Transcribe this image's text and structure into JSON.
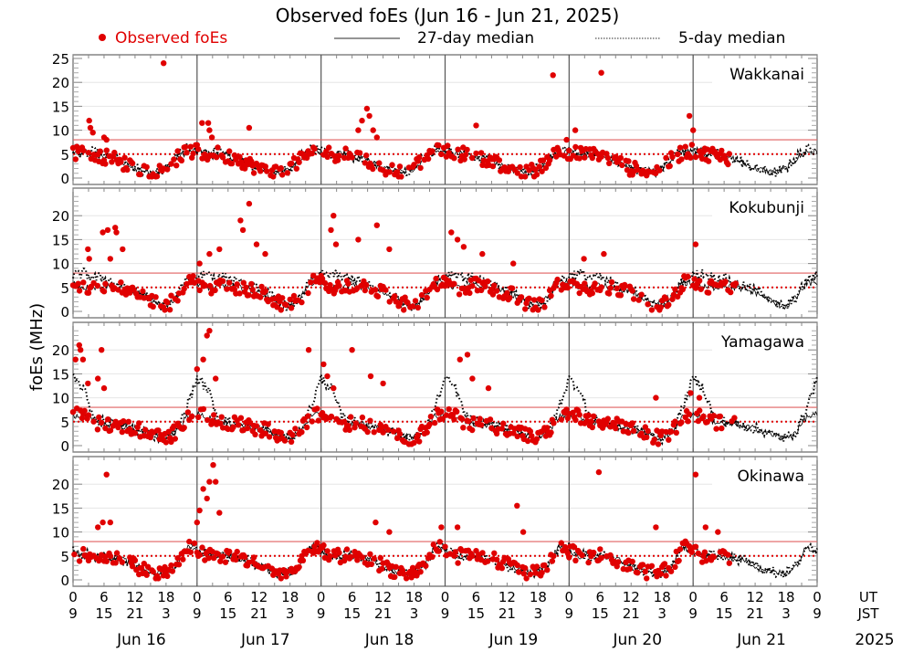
{
  "chart_data": {
    "type": "scatter",
    "title": "Observed foEs (Jun 16 - Jun 21, 2025)",
    "ylabel": "foEs (MHz)",
    "ylim": [
      0,
      25
    ],
    "yticks": [
      0,
      5,
      10,
      15,
      20,
      25
    ],
    "yticks_lower_panels": [
      0,
      5,
      10,
      15,
      20
    ],
    "grid": true,
    "legend": {
      "placement": "top",
      "entries": [
        {
          "label": "Observed foEs",
          "style": "red-dot",
          "color": "#e00000"
        },
        {
          "label": "27-day median",
          "style": "solid-line",
          "color": "#000000"
        },
        {
          "label": "5-day median",
          "style": "dotted-line",
          "color": "#000000"
        }
      ]
    },
    "reference_lines": [
      {
        "value": 8,
        "style": "solid",
        "color": "#e06060"
      },
      {
        "value": 5,
        "style": "dotted",
        "color": "#e00000"
      }
    ],
    "x_ut_ticks": [
      "0",
      "6",
      "12",
      "18",
      "0",
      "6",
      "12",
      "18",
      "0",
      "6",
      "12",
      "18",
      "0",
      "6",
      "12",
      "18",
      "0",
      "6",
      "12",
      "18",
      "0",
      "6",
      "12",
      "18",
      "0"
    ],
    "x_jst_ticks": [
      "9",
      "15",
      "21",
      "3",
      "9",
      "15",
      "21",
      "3",
      "9",
      "15",
      "21",
      "3",
      "9",
      "15",
      "21",
      "3",
      "9",
      "15",
      "21",
      "3",
      "9",
      "15",
      "21",
      "3",
      "9"
    ],
    "x_ut_label": "UT",
    "x_jst_label": "JST",
    "days": [
      "Jun 16",
      "Jun 17",
      "Jun 18",
      "Jun 19",
      "Jun 20",
      "Jun 21"
    ],
    "year": "2025",
    "panels": [
      {
        "station": "Wakkanai",
        "median27_daily": [
          5.5,
          5,
          5,
          4.5,
          4,
          3,
          2,
          1.5,
          1.2,
          2,
          4,
          5.5
        ],
        "median5_daily": [
          6,
          5,
          5.5,
          4.5,
          4,
          3,
          2,
          1.5,
          1,
          2,
          4.5,
          6
        ],
        "observed_until_day": 5.3,
        "peaks": [
          [
            0.13,
            12
          ],
          [
            0.14,
            10.5
          ],
          [
            0.16,
            9.5
          ],
          [
            0.25,
            8.5
          ],
          [
            0.27,
            8
          ],
          [
            0.73,
            24
          ],
          [
            1.04,
            11.5
          ],
          [
            1.09,
            11.5
          ],
          [
            1.1,
            10
          ],
          [
            1.12,
            8.5
          ],
          [
            1.42,
            10.5
          ],
          [
            2.3,
            10
          ],
          [
            2.33,
            12
          ],
          [
            2.37,
            14.5
          ],
          [
            2.39,
            13
          ],
          [
            2.42,
            10
          ],
          [
            2.45,
            8.5
          ],
          [
            3.25,
            11
          ],
          [
            3.87,
            21.5
          ],
          [
            3.98,
            8
          ],
          [
            4.05,
            10
          ],
          [
            4.26,
            22
          ],
          [
            4.97,
            13
          ],
          [
            5.0,
            10
          ]
        ]
      },
      {
        "station": "Kokubunji",
        "median27_daily": [
          6,
          5,
          5,
          5.5,
          5,
          4.5,
          4,
          3,
          1.5,
          1,
          3,
          6
        ],
        "median5_daily": [
          7.5,
          8,
          7,
          7,
          6,
          5,
          4.5,
          3.5,
          1.5,
          1,
          3,
          6.5
        ],
        "observed_until_day": 5.35,
        "peaks": [
          [
            0.12,
            13
          ],
          [
            0.13,
            11
          ],
          [
            0.28,
            17
          ],
          [
            0.34,
            17.5
          ],
          [
            0.35,
            16.5
          ],
          [
            0.4,
            13
          ],
          [
            0.3,
            11
          ],
          [
            0.24,
            16.5
          ],
          [
            1.02,
            10
          ],
          [
            1.1,
            12
          ],
          [
            1.18,
            13
          ],
          [
            1.35,
            19
          ],
          [
            1.37,
            17
          ],
          [
            1.42,
            22.5
          ],
          [
            1.48,
            14
          ],
          [
            1.55,
            12
          ],
          [
            2.08,
            17
          ],
          [
            2.1,
            20
          ],
          [
            2.12,
            14
          ],
          [
            2.3,
            15
          ],
          [
            2.45,
            18
          ],
          [
            2.55,
            13
          ],
          [
            3.05,
            16.5
          ],
          [
            3.1,
            15
          ],
          [
            3.15,
            13.5
          ],
          [
            3.3,
            12
          ],
          [
            3.55,
            10
          ],
          [
            4.12,
            11
          ],
          [
            4.28,
            12
          ],
          [
            5.02,
            14
          ]
        ]
      },
      {
        "station": "Yamagawa",
        "median27_daily": [
          6.5,
          6,
          5,
          4.5,
          4.5,
          4,
          3.5,
          3,
          2,
          1.5,
          3,
          6
        ],
        "median5_daily": [
          14,
          12,
          6,
          5,
          4.5,
          4,
          3.5,
          3,
          2,
          1.5,
          3,
          8
        ],
        "observed_until_day": 5.35,
        "peaks": [
          [
            0.02,
            18
          ],
          [
            0.05,
            21
          ],
          [
            0.06,
            20
          ],
          [
            0.08,
            18
          ],
          [
            0.12,
            13
          ],
          [
            0.2,
            14
          ],
          [
            0.23,
            20
          ],
          [
            0.25,
            12
          ],
          [
            1.0,
            16
          ],
          [
            1.05,
            18
          ],
          [
            1.08,
            23
          ],
          [
            1.1,
            24
          ],
          [
            1.15,
            14
          ],
          [
            1.9,
            20
          ],
          [
            2.02,
            17
          ],
          [
            2.05,
            14.5
          ],
          [
            2.1,
            12
          ],
          [
            2.25,
            20
          ],
          [
            2.4,
            14.5
          ],
          [
            2.5,
            13
          ],
          [
            3.12,
            18
          ],
          [
            3.18,
            19
          ],
          [
            3.22,
            14
          ],
          [
            3.35,
            12
          ],
          [
            4.7,
            10
          ],
          [
            4.98,
            11
          ],
          [
            5.05,
            10
          ]
        ]
      },
      {
        "station": "Okinawa",
        "median27_daily": [
          6,
          5,
          5,
          5,
          4.5,
          4,
          3,
          2,
          1.5,
          1.5,
          3,
          7
        ],
        "median5_daily": [
          6.5,
          5.5,
          5,
          5,
          4.5,
          4,
          3,
          2,
          1.5,
          1.5,
          3,
          7
        ],
        "observed_until_day": 5.3,
        "peaks": [
          [
            0.2,
            11
          ],
          [
            0.24,
            12
          ],
          [
            0.27,
            22
          ],
          [
            0.3,
            12
          ],
          [
            1.0,
            12
          ],
          [
            1.02,
            14.5
          ],
          [
            1.05,
            19
          ],
          [
            1.08,
            17
          ],
          [
            1.1,
            20.5
          ],
          [
            1.13,
            24
          ],
          [
            1.15,
            20.5
          ],
          [
            1.18,
            14
          ],
          [
            2.44,
            12
          ],
          [
            2.55,
            10
          ],
          [
            2.97,
            11
          ],
          [
            3.1,
            11
          ],
          [
            3.58,
            15.5
          ],
          [
            3.63,
            10
          ],
          [
            4.24,
            22.5
          ],
          [
            4.7,
            11
          ],
          [
            5.02,
            22
          ],
          [
            5.1,
            11
          ],
          [
            5.2,
            10
          ]
        ]
      }
    ]
  }
}
